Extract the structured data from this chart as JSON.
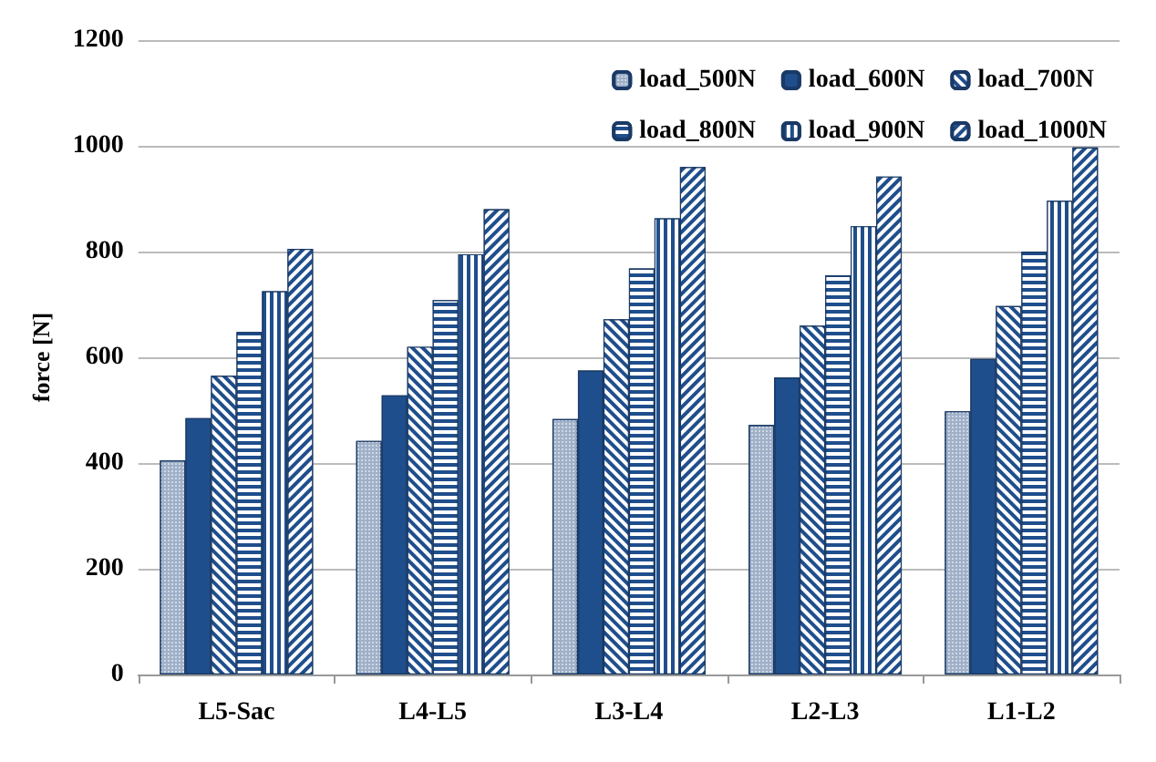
{
  "chart_data": {
    "type": "bar",
    "ylabel": "force [N]",
    "categories": [
      "L5-Sac",
      "L4-L5",
      "L3-L4",
      "L2-L3",
      "L1-L2"
    ],
    "series": [
      {
        "name": "load_500N",
        "color": "#9fb0c8",
        "values": [
          405,
          442,
          483,
          472,
          498
        ]
      },
      {
        "name": "load_600N",
        "color": "#1f4e8c",
        "values": [
          485,
          528,
          575,
          562,
          597
        ]
      },
      {
        "name": "load_700N",
        "color": "#1f4e8c",
        "values": [
          565,
          620,
          672,
          660,
          697
        ]
      },
      {
        "name": "load_800N",
        "color": "#1f4e8c",
        "values": [
          648,
          708,
          768,
          755,
          800
        ]
      },
      {
        "name": "load_900N",
        "color": "#1f4e8c",
        "values": [
          725,
          795,
          863,
          848,
          896
        ]
      },
      {
        "name": "load_1000N",
        "color": "#1f4e8c",
        "values": [
          805,
          880,
          960,
          942,
          997
        ]
      }
    ],
    "ylim": [
      0,
      1200
    ],
    "yticks": [
      0,
      200,
      400,
      600,
      800,
      1000,
      1200
    ],
    "grid": "y",
    "legend": "top right"
  }
}
